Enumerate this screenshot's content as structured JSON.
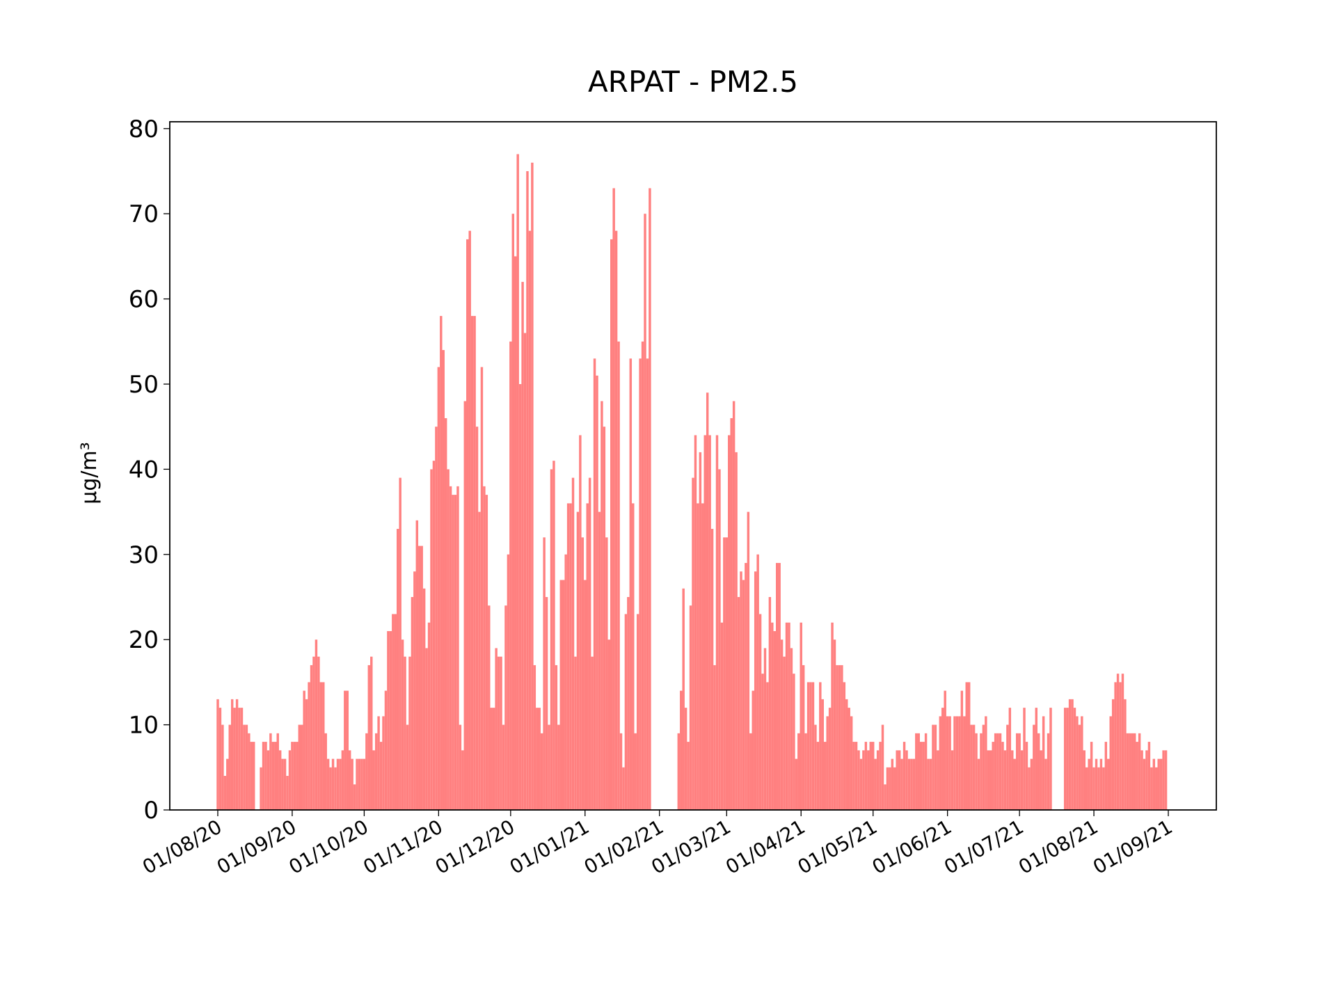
{
  "chart_data": {
    "type": "bar",
    "title": "ARPAT - PM2.5",
    "ylabel": "µg/m³",
    "color": "#ff8080",
    "x": [
      "2020-08-01",
      "2020-08-02",
      "2020-08-03",
      "2020-08-04",
      "2020-08-05",
      "2020-08-06",
      "2020-08-07",
      "2020-08-08",
      "2020-08-09",
      "2020-08-10",
      "2020-08-11",
      "2020-08-12",
      "2020-08-13",
      "2020-08-14",
      "2020-08-15",
      "2020-08-16",
      "2020-08-17",
      "2020-08-18",
      "2020-08-19",
      "2020-08-20",
      "2020-08-21",
      "2020-08-22",
      "2020-08-23",
      "2020-08-24",
      "2020-08-25",
      "2020-08-26",
      "2020-08-27",
      "2020-08-28",
      "2020-08-29",
      "2020-08-30",
      "2020-08-31",
      "2020-09-01",
      "2020-09-02",
      "2020-09-03",
      "2020-09-04",
      "2020-09-05",
      "2020-09-06",
      "2020-09-07",
      "2020-09-08",
      "2020-09-09",
      "2020-09-10",
      "2020-09-11",
      "2020-09-12",
      "2020-09-13",
      "2020-09-14",
      "2020-09-15",
      "2020-09-16",
      "2020-09-17",
      "2020-09-18",
      "2020-09-19",
      "2020-09-20",
      "2020-09-21",
      "2020-09-22",
      "2020-09-23",
      "2020-09-24",
      "2020-09-25",
      "2020-09-26",
      "2020-09-27",
      "2020-09-28",
      "2020-09-29",
      "2020-09-30",
      "2020-10-01",
      "2020-10-02",
      "2020-10-03",
      "2020-10-04",
      "2020-10-05",
      "2020-10-06",
      "2020-10-07",
      "2020-10-08",
      "2020-10-09",
      "2020-10-10",
      "2020-10-11",
      "2020-10-12",
      "2020-10-13",
      "2020-10-14",
      "2020-10-15",
      "2020-10-16",
      "2020-10-17",
      "2020-10-18",
      "2020-10-19",
      "2020-10-20",
      "2020-10-21",
      "2020-10-22",
      "2020-10-23",
      "2020-10-24",
      "2020-10-25",
      "2020-10-26",
      "2020-10-27",
      "2020-10-28",
      "2020-10-29",
      "2020-10-30",
      "2020-10-31",
      "2020-11-01",
      "2020-11-02",
      "2020-11-03",
      "2020-11-04",
      "2020-11-05",
      "2020-11-06",
      "2020-11-07",
      "2020-11-08",
      "2020-11-09",
      "2020-11-10",
      "2020-11-11",
      "2020-11-12",
      "2020-11-13",
      "2020-11-14",
      "2020-11-15",
      "2020-11-16",
      "2020-11-17",
      "2020-11-18",
      "2020-11-19",
      "2020-11-20",
      "2020-11-21",
      "2020-11-22",
      "2020-11-23",
      "2020-11-24",
      "2020-11-25",
      "2020-11-26",
      "2020-11-27",
      "2020-11-28",
      "2020-11-29",
      "2020-11-30",
      "2020-12-01",
      "2020-12-02",
      "2020-12-03",
      "2020-12-04",
      "2020-12-05",
      "2020-12-06",
      "2020-12-07",
      "2020-12-08",
      "2020-12-09",
      "2020-12-10",
      "2020-12-11",
      "2020-12-12",
      "2020-12-13",
      "2020-12-14",
      "2020-12-15",
      "2020-12-16",
      "2020-12-17",
      "2020-12-18",
      "2020-12-19",
      "2020-12-20",
      "2020-12-21",
      "2020-12-22",
      "2020-12-23",
      "2020-12-24",
      "2020-12-25",
      "2020-12-26",
      "2020-12-27",
      "2020-12-28",
      "2020-12-29",
      "2020-12-30",
      "2020-12-31",
      "2021-01-01",
      "2021-01-02",
      "2021-01-03",
      "2021-01-04",
      "2021-01-05",
      "2021-01-06",
      "2021-01-07",
      "2021-01-08",
      "2021-01-09",
      "2021-01-10",
      "2021-01-11",
      "2021-01-12",
      "2021-01-13",
      "2021-01-14",
      "2021-01-15",
      "2021-01-16",
      "2021-01-17",
      "2021-01-18",
      "2021-01-19",
      "2021-01-20",
      "2021-01-21",
      "2021-01-22",
      "2021-01-23",
      "2021-01-24",
      "2021-01-25",
      "2021-01-26",
      "2021-01-27",
      "2021-01-28",
      "2021-01-29",
      "2021-01-30",
      "2021-01-31",
      "2021-02-01",
      "2021-02-02",
      "2021-02-03",
      "2021-02-04",
      "2021-02-05",
      "2021-02-06",
      "2021-02-07",
      "2021-02-08",
      "2021-02-09",
      "2021-02-10",
      "2021-02-11",
      "2021-02-12",
      "2021-02-13",
      "2021-02-14",
      "2021-02-15",
      "2021-02-16",
      "2021-02-17",
      "2021-02-18",
      "2021-02-19",
      "2021-02-20",
      "2021-02-21",
      "2021-02-22",
      "2021-02-23",
      "2021-02-24",
      "2021-02-25",
      "2021-02-26",
      "2021-02-27",
      "2021-02-28",
      "2021-03-01",
      "2021-03-02",
      "2021-03-03",
      "2021-03-04",
      "2021-03-05",
      "2021-03-06",
      "2021-03-07",
      "2021-03-08",
      "2021-03-09",
      "2021-03-10",
      "2021-03-11",
      "2021-03-12",
      "2021-03-13",
      "2021-03-14",
      "2021-03-15",
      "2021-03-16",
      "2021-03-17",
      "2021-03-18",
      "2021-03-19",
      "2021-03-20",
      "2021-03-21",
      "2021-03-22",
      "2021-03-23",
      "2021-03-24",
      "2021-03-25",
      "2021-03-26",
      "2021-03-27",
      "2021-03-28",
      "2021-03-29",
      "2021-03-30",
      "2021-03-31",
      "2021-04-01",
      "2021-04-02",
      "2021-04-03",
      "2021-04-04",
      "2021-04-05",
      "2021-04-06",
      "2021-04-07",
      "2021-04-08",
      "2021-04-09",
      "2021-04-10",
      "2021-04-11",
      "2021-04-12",
      "2021-04-13",
      "2021-04-14",
      "2021-04-15",
      "2021-04-16",
      "2021-04-17",
      "2021-04-18",
      "2021-04-19",
      "2021-04-20",
      "2021-04-21",
      "2021-04-22",
      "2021-04-23",
      "2021-04-24",
      "2021-04-25",
      "2021-04-26",
      "2021-04-27",
      "2021-04-28",
      "2021-04-29",
      "2021-04-30",
      "2021-05-01",
      "2021-05-02",
      "2021-05-03",
      "2021-05-04",
      "2021-05-05",
      "2021-05-06",
      "2021-05-07",
      "2021-05-08",
      "2021-05-09",
      "2021-05-10",
      "2021-05-11",
      "2021-05-12",
      "2021-05-13",
      "2021-05-14",
      "2021-05-15",
      "2021-05-16",
      "2021-05-17",
      "2021-05-18",
      "2021-05-19",
      "2021-05-20",
      "2021-05-21",
      "2021-05-22",
      "2021-05-23",
      "2021-05-24",
      "2021-05-25",
      "2021-05-26",
      "2021-05-27",
      "2021-05-28",
      "2021-05-29",
      "2021-05-30",
      "2021-05-31",
      "2021-06-01",
      "2021-06-02",
      "2021-06-03",
      "2021-06-04",
      "2021-06-05",
      "2021-06-06",
      "2021-06-07",
      "2021-06-08",
      "2021-06-09",
      "2021-06-10",
      "2021-06-11",
      "2021-06-12",
      "2021-06-13",
      "2021-06-14",
      "2021-06-15",
      "2021-06-16",
      "2021-06-17",
      "2021-06-18",
      "2021-06-19",
      "2021-06-20",
      "2021-06-21",
      "2021-06-22",
      "2021-06-23",
      "2021-06-24",
      "2021-06-25",
      "2021-06-26",
      "2021-06-27",
      "2021-06-28",
      "2021-06-29",
      "2021-06-30",
      "2021-07-01",
      "2021-07-02",
      "2021-07-03",
      "2021-07-04",
      "2021-07-05",
      "2021-07-06",
      "2021-07-07",
      "2021-07-08",
      "2021-07-09",
      "2021-07-10",
      "2021-07-11",
      "2021-07-12",
      "2021-07-13",
      "2021-07-14",
      "2021-07-15",
      "2021-07-16",
      "2021-07-17",
      "2021-07-18",
      "2021-07-19",
      "2021-07-20",
      "2021-07-21",
      "2021-07-22",
      "2021-07-23",
      "2021-07-24",
      "2021-07-25",
      "2021-07-26",
      "2021-07-27",
      "2021-07-28",
      "2021-07-29",
      "2021-07-30",
      "2021-07-31",
      "2021-08-01",
      "2021-08-02",
      "2021-08-03",
      "2021-08-04",
      "2021-08-05",
      "2021-08-06",
      "2021-08-07",
      "2021-08-08",
      "2021-08-09",
      "2021-08-10",
      "2021-08-11",
      "2021-08-12",
      "2021-08-13",
      "2021-08-14",
      "2021-08-15",
      "2021-08-16",
      "2021-08-17",
      "2021-08-18",
      "2021-08-19",
      "2021-08-20",
      "2021-08-21",
      "2021-08-22",
      "2021-08-23",
      "2021-08-24",
      "2021-08-25",
      "2021-08-26",
      "2021-08-27",
      "2021-08-28",
      "2021-08-29",
      "2021-08-30",
      "2021-08-31"
    ],
    "values": [
      13,
      12,
      10,
      4,
      6,
      10,
      13,
      12,
      13,
      12,
      12,
      10,
      10,
      9,
      8,
      8,
      null,
      null,
      5,
      8,
      8,
      7,
      9,
      8,
      8,
      9,
      7,
      6,
      6,
      4,
      7,
      8,
      8,
      8,
      10,
      10,
      14,
      13,
      15,
      17,
      18,
      20,
      18,
      15,
      15,
      9,
      6,
      5,
      6,
      5,
      6,
      6,
      7,
      14,
      14,
      7,
      6,
      3,
      6,
      6,
      6,
      6,
      9,
      17,
      18,
      7,
      9,
      11,
      8,
      11,
      14,
      21,
      21,
      23,
      23,
      33,
      39,
      20,
      18,
      10,
      18,
      25,
      28,
      34,
      31,
      31,
      26,
      19,
      22,
      40,
      41,
      45,
      52,
      58,
      54,
      46,
      40,
      38,
      37,
      37,
      38,
      10,
      7,
      48,
      67,
      68,
      58,
      58,
      45,
      35,
      52,
      38,
      37,
      24,
      12,
      12,
      19,
      18,
      18,
      10,
      24,
      30,
      55,
      70,
      65,
      77,
      50,
      62,
      56,
      75,
      68,
      76,
      17,
      12,
      12,
      9,
      32,
      25,
      10,
      40,
      41,
      17,
      10,
      27,
      27,
      30,
      36,
      36,
      39,
      18,
      35,
      44,
      32,
      27,
      36,
      39,
      18,
      53,
      51,
      35,
      48,
      45,
      32,
      20,
      67,
      73,
      68,
      55,
      9,
      5,
      23,
      25,
      53,
      36,
      9,
      23,
      53,
      55,
      70,
      53,
      73,
      null,
      null,
      null,
      null,
      null,
      null,
      null,
      null,
      null,
      null,
      null,
      9,
      14,
      26,
      12,
      8,
      24,
      39,
      44,
      36,
      42,
      36,
      44,
      49,
      44,
      33,
      17,
      44,
      40,
      22,
      32,
      32,
      44,
      46,
      48,
      42,
      25,
      28,
      27,
      29,
      35,
      9,
      14,
      28,
      30,
      23,
      16,
      19,
      15,
      25,
      22,
      21,
      29,
      29,
      20,
      18,
      22,
      22,
      19,
      16,
      6,
      9,
      22,
      17,
      9,
      15,
      15,
      15,
      10,
      8,
      15,
      13,
      8,
      11,
      12,
      22,
      20,
      17,
      17,
      17,
      15,
      13,
      12,
      11,
      8,
      8,
      7,
      6,
      7,
      8,
      7,
      8,
      8,
      6,
      7,
      8,
      10,
      3,
      5,
      5,
      6,
      5,
      7,
      7,
      6,
      8,
      7,
      6,
      6,
      6,
      9,
      9,
      8,
      8,
      9,
      6,
      6,
      10,
      10,
      7,
      11,
      12,
      14,
      11,
      11,
      7,
      11,
      11,
      11,
      14,
      11,
      15,
      15,
      10,
      10,
      9,
      6,
      9,
      10,
      11,
      7,
      7,
      8,
      9,
      9,
      9,
      8,
      7,
      10,
      12,
      7,
      6,
      9,
      9,
      7,
      12,
      8,
      5,
      6,
      10,
      12,
      9,
      7,
      11,
      6,
      9,
      12,
      null,
      null,
      null,
      null,
      null,
      12,
      12,
      13,
      13,
      12,
      11,
      10,
      11,
      7,
      5,
      6,
      8,
      5,
      6,
      5,
      6,
      5,
      8,
      6,
      11,
      13,
      15,
      16,
      15,
      16,
      13,
      9,
      9,
      9,
      9,
      8,
      9,
      7,
      6,
      7,
      8,
      5,
      6,
      5,
      6,
      6,
      7,
      7
    ],
    "xlim": [
      "2020-07-12",
      "2021-09-21"
    ],
    "ylim": [
      0,
      80.8
    ],
    "yticks": [
      0,
      10,
      20,
      30,
      40,
      50,
      60,
      70,
      80
    ],
    "xticks": [
      {
        "value": "2020-08-01",
        "label": "01/08/20"
      },
      {
        "value": "2020-09-01",
        "label": "01/09/20"
      },
      {
        "value": "2020-10-01",
        "label": "01/10/20"
      },
      {
        "value": "2020-11-01",
        "label": "01/11/20"
      },
      {
        "value": "2020-12-01",
        "label": "01/12/20"
      },
      {
        "value": "2021-01-01",
        "label": "01/01/21"
      },
      {
        "value": "2021-02-01",
        "label": "01/02/21"
      },
      {
        "value": "2021-03-01",
        "label": "01/03/21"
      },
      {
        "value": "2021-04-01",
        "label": "01/04/21"
      },
      {
        "value": "2021-05-01",
        "label": "01/05/21"
      },
      {
        "value": "2021-06-01",
        "label": "01/06/21"
      },
      {
        "value": "2021-07-01",
        "label": "01/07/21"
      },
      {
        "value": "2021-08-01",
        "label": "01/08/21"
      },
      {
        "value": "2021-09-01",
        "label": "01/09/21"
      }
    ]
  }
}
